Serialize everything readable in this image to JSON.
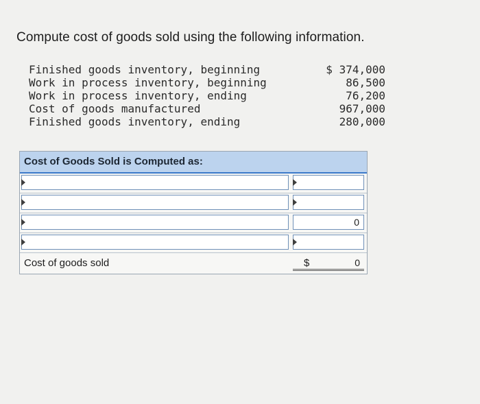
{
  "question": "Compute cost of goods sold using the following information.",
  "given": [
    {
      "label": "Finished goods inventory, beginning",
      "value": "$ 374,000"
    },
    {
      "label": "Work in process inventory, beginning",
      "value": "86,500"
    },
    {
      "label": "Work in process inventory, ending",
      "value": "76,200"
    },
    {
      "label": "Cost of goods manufactured",
      "value": "967,000"
    },
    {
      "label": "Finished goods inventory, ending",
      "value": "280,000"
    }
  ],
  "table": {
    "header": "Cost of Goods Sold is Computed as:",
    "rows": [
      {
        "label": "",
        "amount": ""
      },
      {
        "label": "",
        "amount": ""
      },
      {
        "label": "",
        "amount": "0"
      },
      {
        "label": "",
        "amount": ""
      }
    ],
    "total": {
      "label": "Cost of goods sold",
      "dollar": "$",
      "amount": "0"
    }
  }
}
